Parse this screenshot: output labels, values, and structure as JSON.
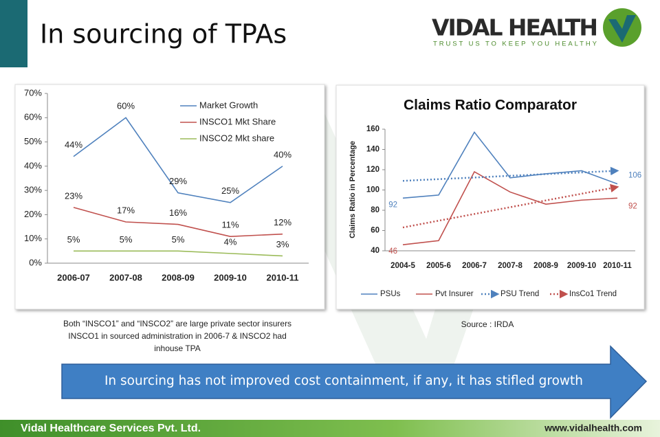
{
  "slide": {
    "title": "In sourcing of TPAs",
    "logo": "VIDAL HEALTH",
    "tagline": "TRUST US TO KEEP YOU HEALTHY",
    "caption": [
      "Both “INSCO1” and “INSCO2” are large private sector insurers",
      "INSCO1 in sourced administration in 2006-7 & INSCO2 had",
      "inhouse  TPA"
    ],
    "source": "Source : IRDA",
    "arrow_text": "In sourcing has not improved cost containment, if any,  it has stifled growth",
    "footer_left": "Vidal Healthcare Services Pvt. Ltd.",
    "footer_right": "www.vidalhealth.com"
  },
  "chart_data": [
    {
      "type": "line",
      "categories": [
        "2006-07",
        "2007-08",
        "2008-09",
        "2009-10",
        "2010-11"
      ],
      "series": [
        {
          "name": "Market Growth",
          "color": "#4f81bd",
          "values": [
            44,
            60,
            29,
            25,
            40
          ],
          "value_labels": [
            "44%",
            "60%",
            "29%",
            "25%",
            "40%"
          ]
        },
        {
          "name": "INSCO1 Mkt Share",
          "color": "#c0504d",
          "values": [
            23,
            17,
            16,
            11,
            12
          ],
          "value_labels": [
            "23%",
            "17%",
            "16%",
            "11%",
            "12%"
          ]
        },
        {
          "name": "INSCO2 Mkt share",
          "color": "#9bbb59",
          "values": [
            5,
            5,
            5,
            4,
            3
          ],
          "value_labels": [
            "5%",
            "5%",
            "5%",
            "4%",
            "3%"
          ]
        }
      ],
      "ylim": [
        0,
        70
      ],
      "yticks": [
        {
          "value": 0,
          "label": "0%"
        },
        {
          "value": 10,
          "label": "10%"
        },
        {
          "value": 20,
          "label": "20%"
        },
        {
          "value": 30,
          "label": "30%"
        },
        {
          "value": 40,
          "label": "40%"
        },
        {
          "value": 50,
          "label": "50%"
        },
        {
          "value": 60,
          "label": "60%"
        },
        {
          "value": 70,
          "label": "70%"
        }
      ],
      "grid": false,
      "legend": "top-right"
    },
    {
      "type": "line",
      "title": "Claims Ratio Comparator",
      "y_label": "Claims Ratio in Percentage",
      "categories": [
        "2004-5",
        "2005-6",
        "2006-7",
        "2007-8",
        "2008-9",
        "2009-10",
        "2010-11"
      ],
      "series": [
        {
          "name": "PSUs",
          "color": "#4f81bd",
          "values": [
            92,
            95,
            157,
            112,
            116,
            119,
            106
          ],
          "value_labels": [
            "92",
            null,
            null,
            null,
            null,
            null,
            "106"
          ]
        },
        {
          "name": "Pvt Insurer",
          "color": "#c0504d",
          "values": [
            46,
            50,
            118,
            98,
            86,
            90,
            92
          ],
          "value_labels": [
            "46",
            null,
            null,
            null,
            null,
            null,
            "92"
          ]
        },
        {
          "name": "PSU Trend",
          "color": "#4f81bd",
          "line_style": "dotted",
          "arrow": true,
          "values": [
            109,
            110.7,
            112.3,
            114,
            115.7,
            117.3,
            119
          ]
        },
        {
          "name": "InsCo1 Trend",
          "color": "#c0504d",
          "line_style": "dotted",
          "arrow": true,
          "values": [
            63,
            69.7,
            76.3,
            83,
            89.7,
            96.3,
            103
          ]
        }
      ],
      "ylim": [
        40,
        160
      ],
      "yticks": [
        40,
        60,
        80,
        100,
        120,
        140,
        160
      ],
      "grid": false,
      "legend": "bottom"
    }
  ]
}
